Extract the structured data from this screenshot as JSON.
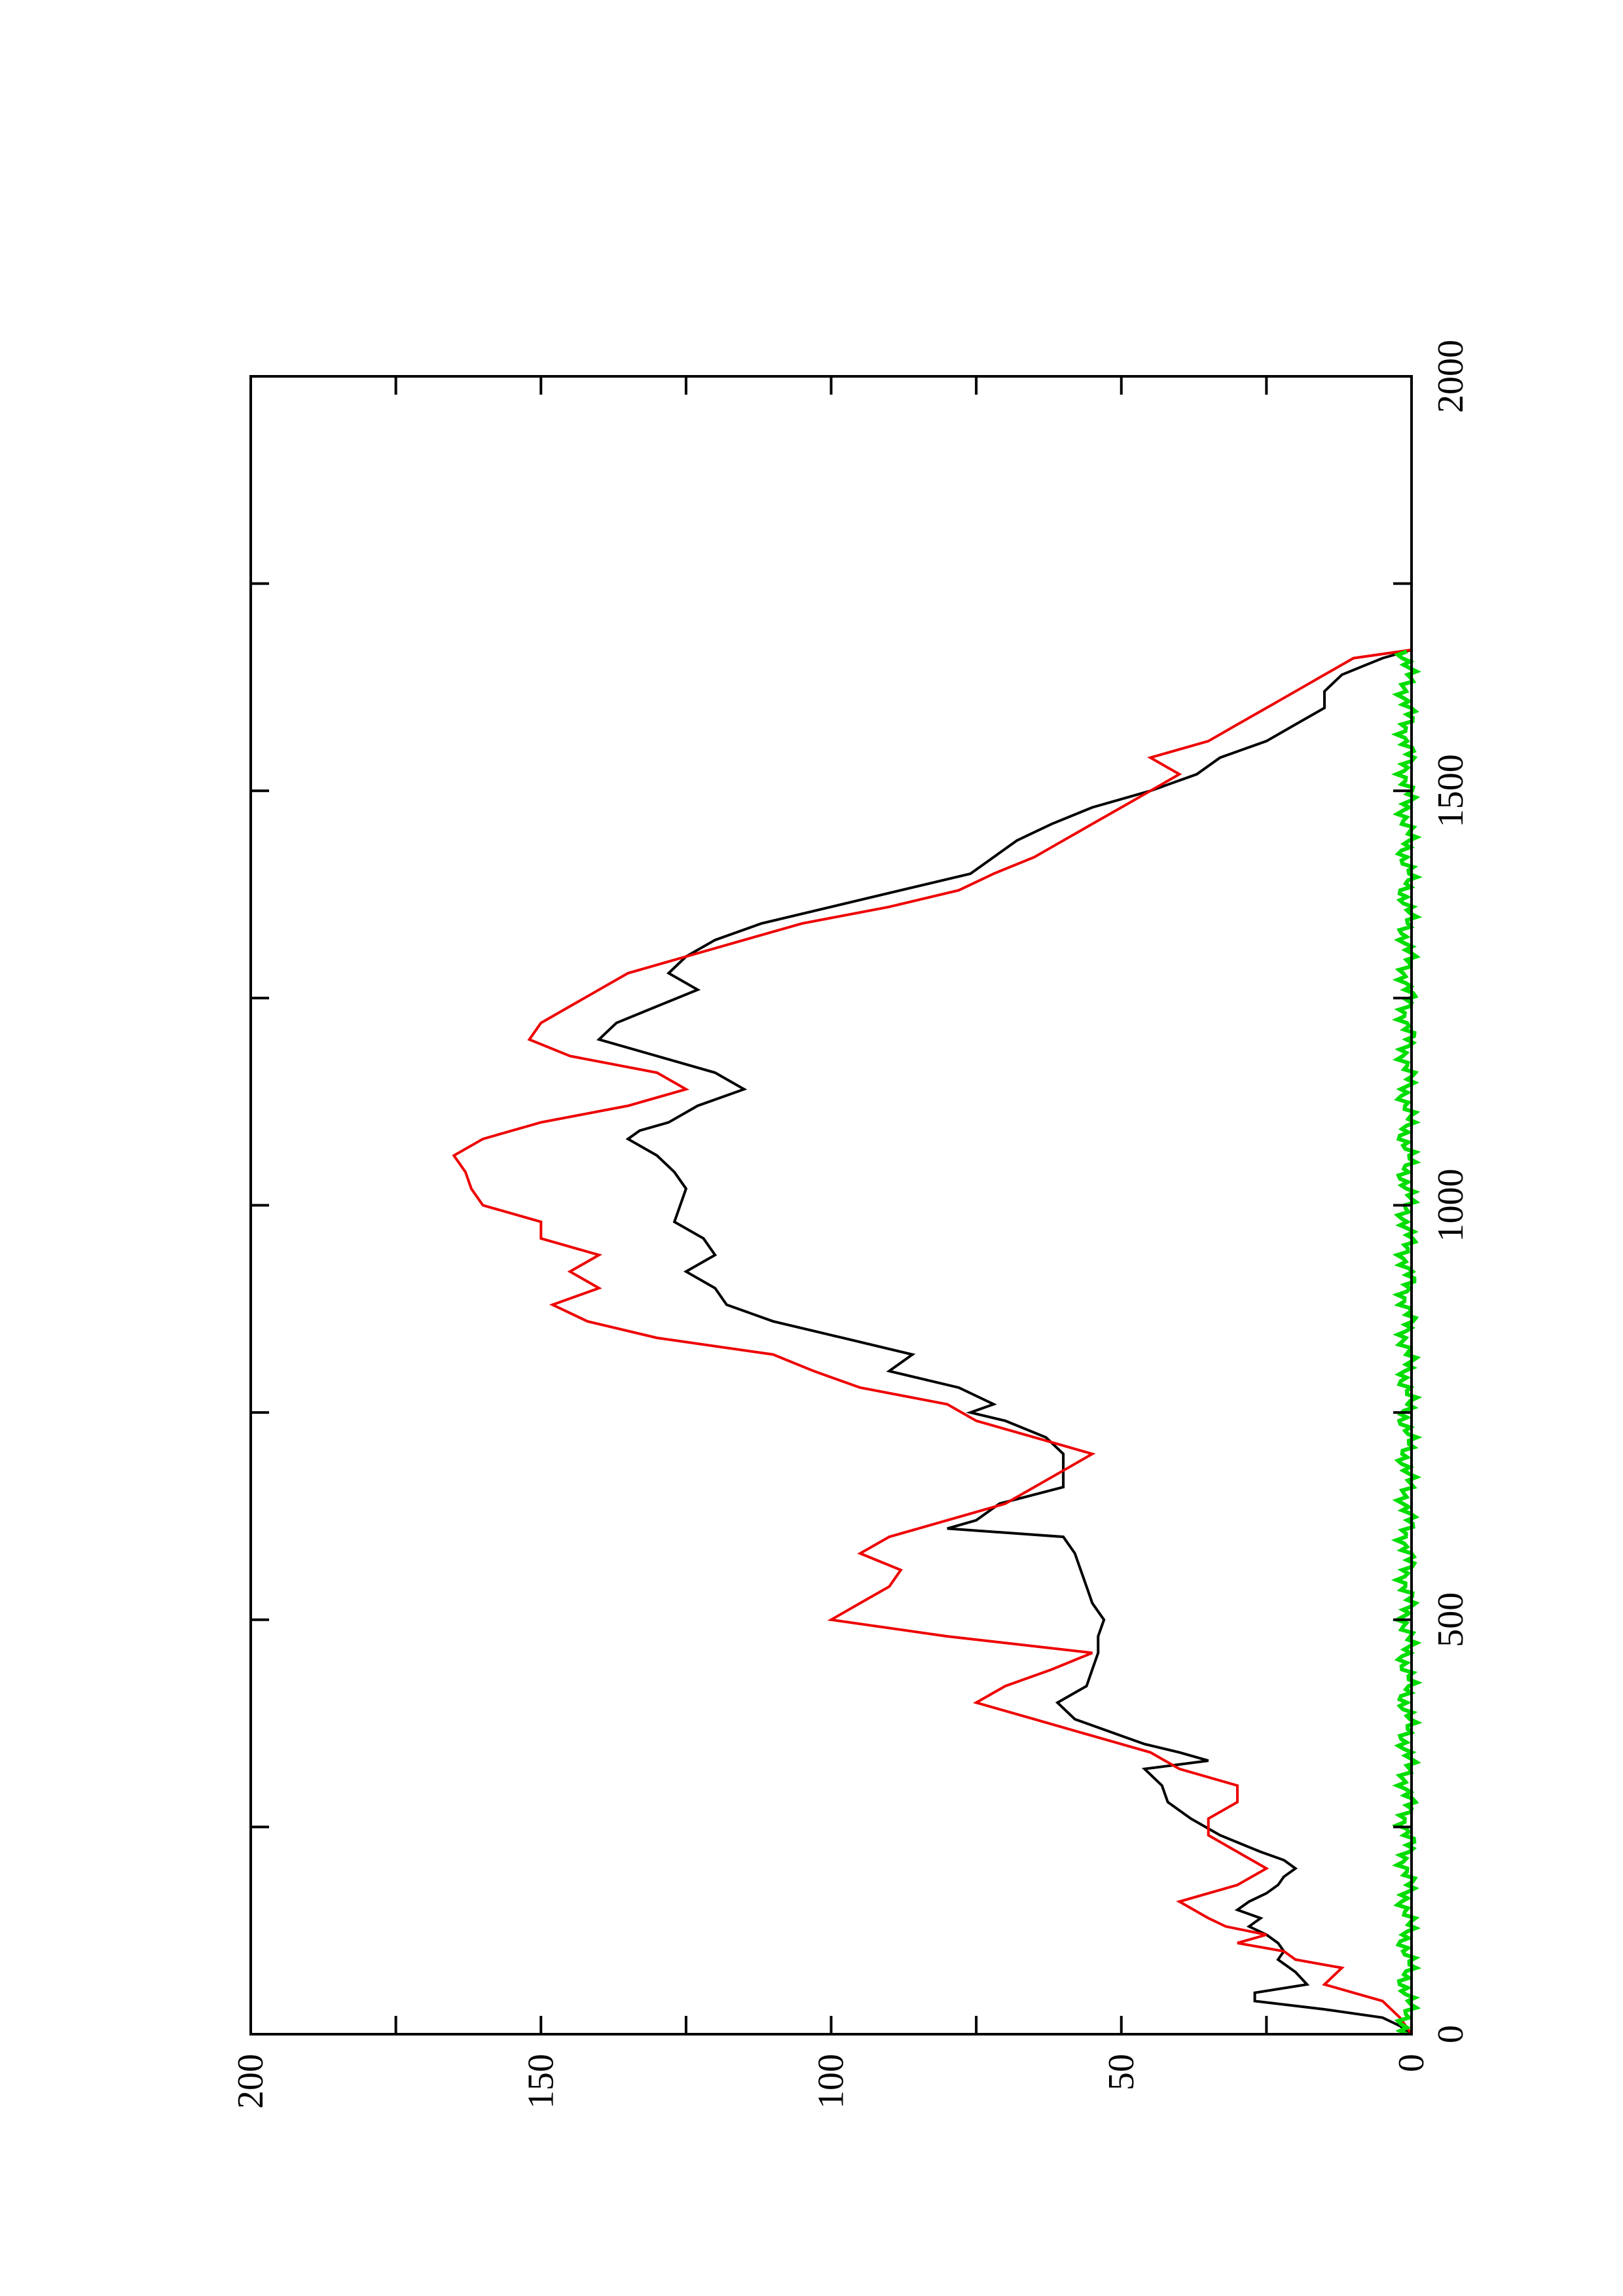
{
  "chart_data": {
    "type": "line",
    "orientation": "rotated-90-counterclockwise",
    "title": "",
    "xlabel": "",
    "ylabel": "",
    "xlim": [
      0,
      2000
    ],
    "ylim": [
      0,
      200
    ],
    "x_ticks": [
      0,
      500,
      1000,
      1500,
      2000
    ],
    "x_tick_labels": [
      "0",
      "500",
      "1000",
      "1500",
      "2000"
    ],
    "y_ticks": [
      0,
      50,
      100,
      150,
      200
    ],
    "y_tick_labels": [
      "0",
      "50",
      "100",
      "150",
      "200"
    ],
    "grid": false,
    "legend": "none",
    "series": [
      {
        "color": "#000000",
        "x": [
          0,
          10,
          20,
          30,
          40,
          50,
          60,
          75,
          90,
          100,
          110,
          120,
          130,
          140,
          150,
          160,
          170,
          180,
          190,
          200,
          210,
          220,
          240,
          260,
          280,
          300,
          320,
          330,
          340,
          350,
          360,
          380,
          400,
          420,
          440,
          460,
          480,
          500,
          520,
          540,
          560,
          580,
          600,
          610,
          620,
          640,
          660,
          680,
          700,
          720,
          740,
          750,
          760,
          780,
          800,
          820,
          840,
          860,
          880,
          900,
          920,
          940,
          960,
          980,
          1000,
          1020,
          1040,
          1060,
          1080,
          1090,
          1100,
          1120,
          1140,
          1160,
          1180,
          1200,
          1220,
          1240,
          1260,
          1280,
          1300,
          1320,
          1340,
          1360,
          1380,
          1400,
          1420,
          1440,
          1460,
          1480,
          1500,
          1520,
          1540,
          1560,
          1580,
          1600,
          1620,
          1640,
          1660,
          1670
        ],
        "y": [
          0,
          2,
          5,
          15,
          27,
          27,
          18,
          20,
          23,
          22,
          23,
          25,
          28,
          26,
          30,
          28,
          25,
          23,
          22,
          20,
          22,
          26,
          33,
          38,
          42,
          43,
          46,
          35,
          40,
          46,
          50,
          58,
          61,
          56,
          55,
          54,
          54,
          53,
          55,
          56,
          57,
          58,
          60,
          80,
          75,
          71,
          60,
          60,
          60,
          63,
          70,
          76,
          72,
          78,
          90,
          86,
          98,
          110,
          118,
          120,
          125,
          120,
          122,
          127,
          126,
          125,
          127,
          130,
          135,
          133,
          128,
          123,
          115,
          120,
          130,
          140,
          137,
          130,
          123,
          128,
          125,
          120,
          112,
          100,
          88,
          76,
          72,
          68,
          62,
          55,
          45,
          37,
          33,
          25,
          20,
          15,
          15,
          12,
          5,
          0
        ]
      },
      {
        "color": "#ee0000",
        "x": [
          0,
          20,
          40,
          60,
          80,
          90,
          100,
          110,
          120,
          130,
          140,
          160,
          180,
          200,
          220,
          240,
          260,
          280,
          300,
          320,
          340,
          360,
          380,
          400,
          420,
          440,
          460,
          480,
          500,
          520,
          540,
          560,
          580,
          600,
          620,
          640,
          660,
          680,
          700,
          720,
          740,
          760,
          780,
          800,
          820,
          840,
          860,
          880,
          900,
          920,
          940,
          960,
          980,
          1000,
          1020,
          1040,
          1060,
          1080,
          1100,
          1120,
          1140,
          1160,
          1180,
          1200,
          1220,
          1240,
          1260,
          1280,
          1300,
          1320,
          1340,
          1360,
          1380,
          1400,
          1420,
          1440,
          1460,
          1480,
          1500,
          1520,
          1540,
          1560,
          1580,
          1600,
          1620,
          1640,
          1660,
          1670
        ],
        "y": [
          0,
          2,
          5,
          15,
          12,
          20,
          22,
          30,
          25,
          32,
          35,
          40,
          30,
          25,
          30,
          35,
          35,
          30,
          30,
          40,
          45,
          55,
          65,
          75,
          70,
          62,
          55,
          80,
          100,
          95,
          90,
          88,
          95,
          90,
          80,
          70,
          65,
          60,
          55,
          65,
          75,
          80,
          95,
          103,
          110,
          130,
          142,
          148,
          140,
          145,
          140,
          150,
          150,
          160,
          162,
          163,
          165,
          160,
          150,
          135,
          125,
          130,
          145,
          152,
          150,
          145,
          140,
          135,
          125,
          115,
          105,
          90,
          78,
          72,
          65,
          60,
          55,
          50,
          45,
          40,
          45,
          35,
          30,
          25,
          20,
          15,
          10,
          0
        ]
      },
      {
        "color": "#00dd00",
        "x": [
          0,
          1670
        ],
        "y": [
          0,
          0
        ]
      }
    ]
  }
}
